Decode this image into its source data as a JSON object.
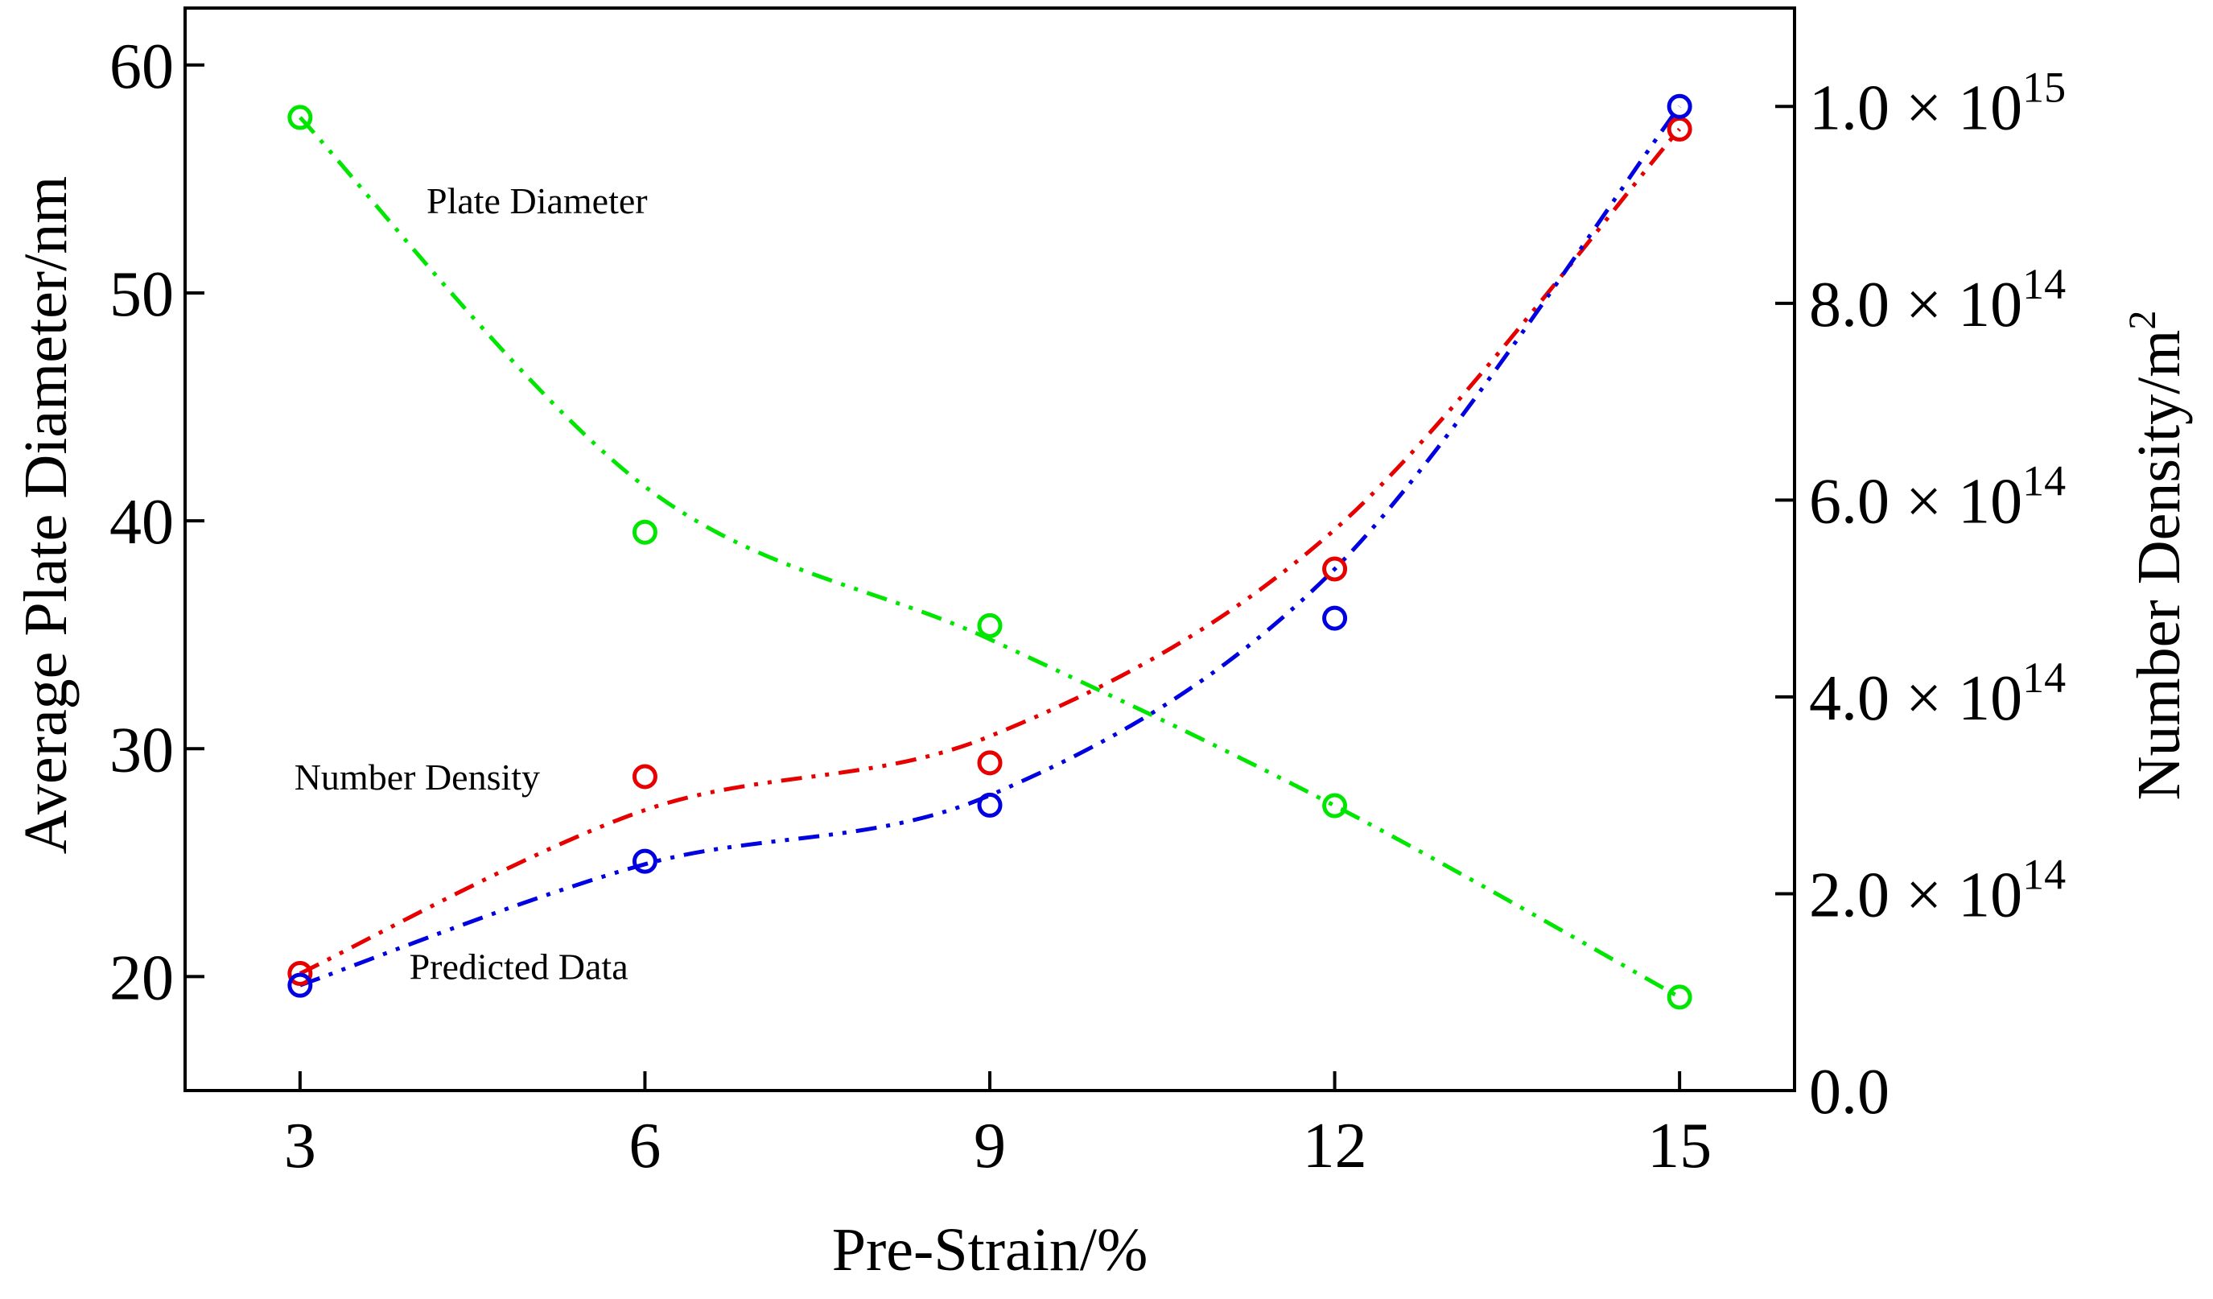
{
  "chart_data": {
    "type": "scatter",
    "xlabel": "Pre-Strain/%",
    "ylabel_left": "Average Plate Diameter/nm",
    "ylabel_right_base": "Number Density/m",
    "ylabel_right_sup": "2",
    "x_ticks": [
      3,
      6,
      9,
      12,
      15
    ],
    "xlim": [
      2,
      16
    ],
    "ylim_left": [
      15,
      62.5
    ],
    "y_ticks_left": [
      20,
      30,
      40,
      50,
      60
    ],
    "ylim_right": [
      0,
      1100000000000000.0
    ],
    "y_ticks_right": [
      {
        "value": 0,
        "label": "0.0"
      },
      {
        "value": 200000000000000.0,
        "mantissa": "2.0",
        "exp": "14"
      },
      {
        "value": 400000000000000.0,
        "mantissa": "4.0",
        "exp": "14"
      },
      {
        "value": 600000000000000.0,
        "mantissa": "6.0",
        "exp": "14"
      },
      {
        "value": 800000000000000.0,
        "mantissa": "8.0",
        "exp": "14"
      },
      {
        "value": 1000000000000000.0,
        "mantissa": "1.0",
        "exp": "15"
      }
    ],
    "times_symbol": "×",
    "base_ten": "10",
    "series": [
      {
        "id": "plate_diameter",
        "axis": "left",
        "color": "#00e600",
        "x": [
          3,
          6,
          9,
          12,
          15
        ],
        "y": [
          57.7,
          39.5,
          35.4,
          27.5,
          19.1
        ],
        "fit": [
          57.7,
          41.5,
          34.8,
          27.5,
          19.1
        ]
      },
      {
        "id": "number_density",
        "axis": "right",
        "color": "#e60000",
        "x": [
          3,
          6,
          9,
          12,
          15
        ],
        "y": [
          119000000000000.0,
          319000000000000.0,
          333000000000000.0,
          530000000000000.0,
          977000000000000.0
        ],
        "fit": [
          119000000000000.0,
          285000000000000.0,
          360000000000000.0,
          570000000000000.0,
          977000000000000.0
        ]
      },
      {
        "id": "predicted_data",
        "axis": "right",
        "color": "#0000e0",
        "x": [
          3,
          6,
          9,
          12,
          15
        ],
        "y": [
          107000000000000.0,
          233000000000000.0,
          290000000000000.0,
          480000000000000.0,
          1000000000000000.0
        ],
        "fit": [
          107000000000000.0,
          230000000000000.0,
          300000000000000.0,
          530000000000000.0,
          1000000000000000.0
        ]
      }
    ],
    "annotations": [
      {
        "id": "plate-diameter-label",
        "text": "Plate Diameter",
        "x": 4.1,
        "y_left": 53.5
      },
      {
        "id": "number-density-label",
        "text": "Number Density",
        "x": 2.95,
        "y_left": 28.2
      },
      {
        "id": "predicted-data-label",
        "text": "Predicted Data",
        "x": 3.95,
        "y_left": 19.9
      }
    ]
  }
}
